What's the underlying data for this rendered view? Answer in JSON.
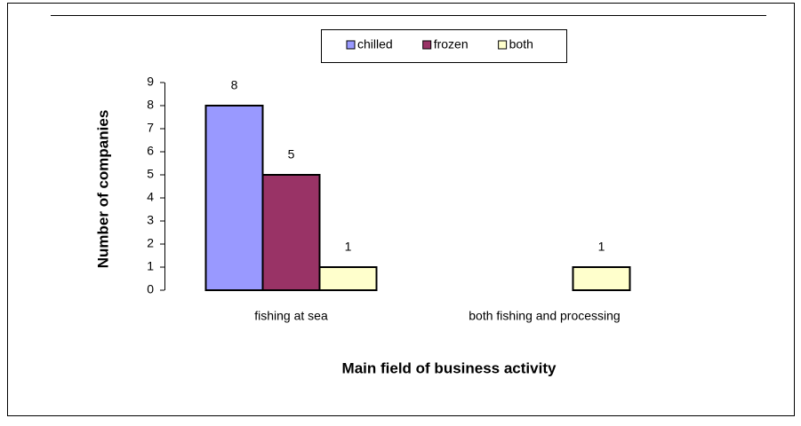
{
  "chart_data": {
    "type": "bar",
    "categories": [
      "fishing at sea",
      "both fishing and processing"
    ],
    "series": [
      {
        "name": "chilled",
        "color": "#9999ff",
        "values": [
          8,
          null
        ]
      },
      {
        "name": "frozen",
        "color": "#993366",
        "values": [
          5,
          null
        ]
      },
      {
        "name": "both",
        "color": "#ffffcc",
        "values": [
          1,
          1
        ]
      }
    ],
    "ylim": [
      0,
      9
    ],
    "yticks": [
      0,
      1,
      2,
      3,
      4,
      5,
      6,
      7,
      8,
      9
    ],
    "y_label": "Number of companies",
    "x_label": "Main field of business activity",
    "legend": "top"
  }
}
